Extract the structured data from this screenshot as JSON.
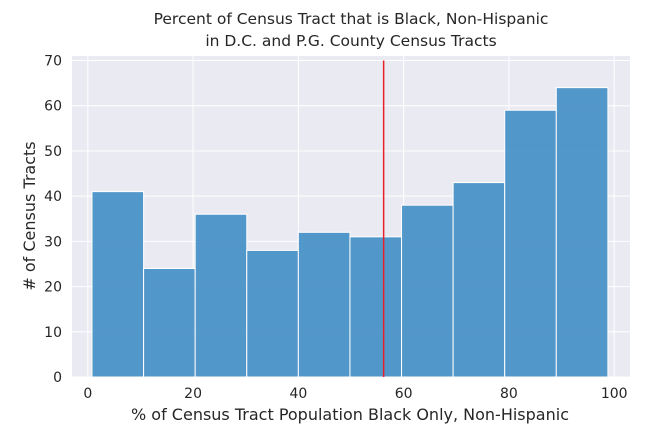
{
  "chart_data": {
    "type": "bar",
    "title_lines": [
      "Percent of Census Tract that is Black, Non-Hispanic",
      "in D.C. and P.G. County Census Tracts"
    ],
    "xlabel": "% of Census Tract Population Black Only, Non-Hispanic",
    "ylabel": "# of Census Tracts",
    "xlim": [
      -3,
      103
    ],
    "ylim": [
      0,
      71
    ],
    "x_ticks": [
      0,
      20,
      40,
      60,
      80,
      100
    ],
    "y_ticks": [
      0,
      10,
      20,
      30,
      40,
      50,
      60,
      70
    ],
    "bins": [
      {
        "start": 0.8,
        "end": 10.6,
        "value": 41
      },
      {
        "start": 10.6,
        "end": 20.4,
        "value": 24
      },
      {
        "start": 20.4,
        "end": 30.2,
        "value": 36
      },
      {
        "start": 30.2,
        "end": 40.0,
        "value": 28
      },
      {
        "start": 40.0,
        "end": 49.8,
        "value": 32
      },
      {
        "start": 49.8,
        "end": 59.6,
        "value": 31
      },
      {
        "start": 59.6,
        "end": 69.4,
        "value": 38
      },
      {
        "start": 69.4,
        "end": 79.2,
        "value": 43
      },
      {
        "start": 79.2,
        "end": 89.0,
        "value": 59
      },
      {
        "start": 89.0,
        "end": 98.8,
        "value": 64
      }
    ],
    "reference_line": {
      "x": 56.2,
      "y_from": 0,
      "y_to": 70,
      "color": "#e8202a"
    },
    "grid": true,
    "colors": {
      "background": "#eaeaf2",
      "bar_fill": "#3c8bc3",
      "bar_edge": "#ffffff",
      "grid": "#ffffff"
    }
  }
}
